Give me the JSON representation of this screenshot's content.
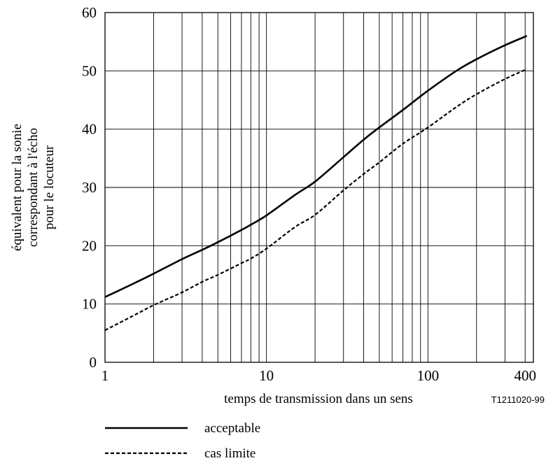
{
  "chart_data": {
    "type": "line",
    "xscale": "log",
    "xlim": [
      1,
      450
    ],
    "ylim": [
      0,
      60
    ],
    "grid": true,
    "legend_position": "bottom-left",
    "xlabel": "temps de transmission dans un sens",
    "ylabel_lines": [
      "équivalent pour la sonie",
      "correspondant à l'écho",
      "pour le locuteur"
    ],
    "reference": "T1211020-99",
    "x_tick_labels": [
      {
        "value": 1,
        "label": "1"
      },
      {
        "value": 10,
        "label": "10"
      },
      {
        "value": 100,
        "label": "100"
      },
      {
        "value": 400,
        "label": "400"
      }
    ],
    "y_ticks": [
      0,
      10,
      20,
      30,
      40,
      50,
      60
    ],
    "series": [
      {
        "name": "acceptable",
        "style": "solid",
        "color": "#000000",
        "points": [
          [
            1,
            11.2
          ],
          [
            1.5,
            13.5
          ],
          [
            2,
            15.2
          ],
          [
            3,
            17.7
          ],
          [
            4,
            19.3
          ],
          [
            5,
            20.6
          ],
          [
            7,
            22.7
          ],
          [
            8,
            23.6
          ],
          [
            10,
            25.2
          ],
          [
            15,
            28.7
          ],
          [
            20,
            31.0
          ],
          [
            30,
            35.2
          ],
          [
            40,
            38.2
          ],
          [
            50,
            40.3
          ],
          [
            70,
            43.3
          ],
          [
            100,
            46.6
          ],
          [
            150,
            50.0
          ],
          [
            200,
            52.0
          ],
          [
            300,
            54.4
          ],
          [
            410,
            56.0
          ]
        ]
      },
      {
        "name": "cas limite",
        "style": "dashed",
        "color": "#000000",
        "points": [
          [
            1,
            5.5
          ],
          [
            1.5,
            8.0
          ],
          [
            2,
            9.8
          ],
          [
            3,
            12.0
          ],
          [
            4,
            13.8
          ],
          [
            5,
            15.0
          ],
          [
            7,
            17.0
          ],
          [
            8,
            17.8
          ],
          [
            10,
            19.5
          ],
          [
            15,
            23.2
          ],
          [
            20,
            25.3
          ],
          [
            30,
            29.5
          ],
          [
            40,
            32.3
          ],
          [
            50,
            34.3
          ],
          [
            70,
            37.5
          ],
          [
            100,
            40.3
          ],
          [
            150,
            43.8
          ],
          [
            200,
            46.0
          ],
          [
            300,
            48.6
          ],
          [
            410,
            50.3
          ]
        ]
      }
    ]
  }
}
